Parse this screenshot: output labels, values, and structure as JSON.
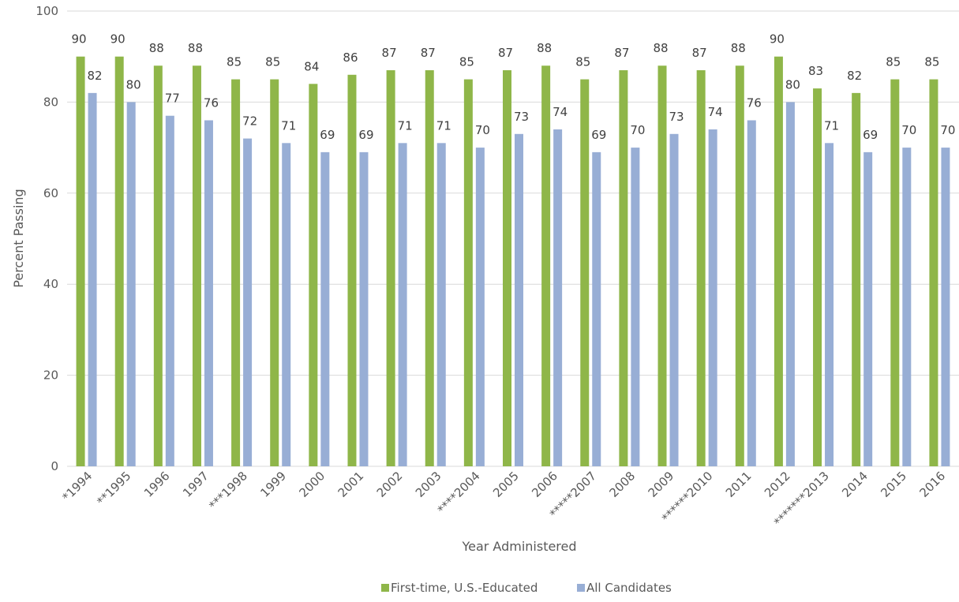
{
  "chart_data": {
    "type": "bar",
    "title": "",
    "xlabel": "Year Administered",
    "ylabel": "Percent Passing",
    "ylim": [
      0,
      100
    ],
    "yticks": [
      0,
      20,
      40,
      60,
      80,
      100
    ],
    "grid": true,
    "legend_position": "bottom",
    "categories": [
      "*1994",
      "**1995",
      "1996",
      "1997",
      "***1998",
      "1999",
      "2000",
      "2001",
      "2002",
      "2003",
      "****2004",
      "2005",
      "2006",
      "*****2007",
      "2008",
      "2009",
      "******2010",
      "2011",
      "2012",
      "*******2013",
      "2014",
      "2015",
      "2016"
    ],
    "series": [
      {
        "name": "First-time, U.S.-Educated",
        "color": "#8fb649",
        "values": [
          90,
          90,
          88,
          88,
          85,
          85,
          84,
          86,
          87,
          87,
          85,
          87,
          88,
          85,
          87,
          88,
          87,
          88,
          90,
          83,
          82,
          85,
          85
        ]
      },
      {
        "name": "All Candidates",
        "color": "#98aed5",
        "values": [
          82,
          80,
          77,
          76,
          72,
          71,
          69,
          69,
          71,
          71,
          70,
          73,
          74,
          69,
          70,
          73,
          74,
          76,
          80,
          71,
          69,
          70,
          70
        ]
      }
    ]
  }
}
